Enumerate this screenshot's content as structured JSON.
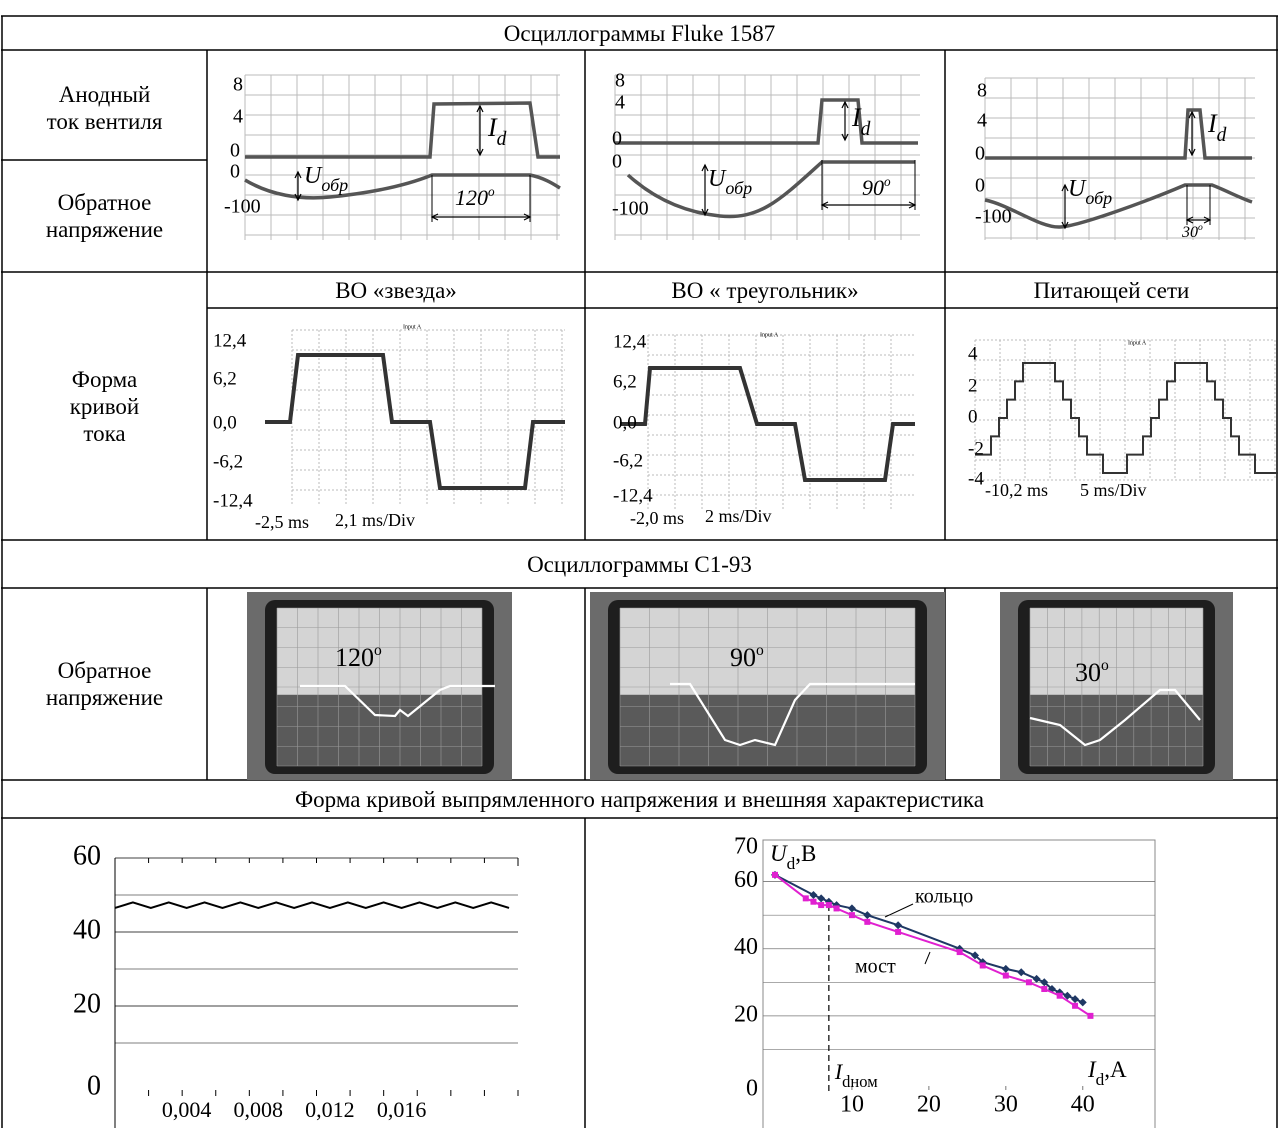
{
  "table": {
    "fluke_title": "Осциллограммы Fluke 1587",
    "row_anode": [
      "Анодный",
      "ток вентиля"
    ],
    "row_reverse": [
      "Обратное",
      "напряжение"
    ],
    "fluke": [
      {
        "top_ticks": [
          "8",
          "4",
          "0"
        ],
        "bottom_ticks": [
          "0",
          "-100"
        ],
        "current": "I",
        "current_sub": "d",
        "voltage": "U",
        "voltage_sub": "обр",
        "angle": "120",
        "angle_sup": "o"
      },
      {
        "top_ticks": [
          "8",
          "4",
          "0"
        ],
        "bottom_ticks": [
          "0",
          "-100"
        ],
        "current": "I",
        "current_sub": "d",
        "voltage": "U",
        "voltage_sub": "обр",
        "angle": "90",
        "angle_sup": "o"
      },
      {
        "top_ticks": [
          "8",
          "4",
          "0"
        ],
        "bottom_ticks": [
          "0",
          "-100"
        ],
        "current": "I",
        "current_sub": "d",
        "voltage": "U",
        "voltage_sub": "обр",
        "angle": "30",
        "angle_sup": "o"
      }
    ],
    "current_headers": [
      "ВО «звезда»",
      "ВО « треугольник»",
      "Питающей сети"
    ],
    "row_current": [
      "Форма",
      "кривой",
      "тока"
    ],
    "current_plots": [
      {
        "ticks": [
          "12,4",
          "6,2",
          "0,0",
          "-6,2",
          "-12,4"
        ],
        "start": "-2,5 ms",
        "scale": "2,1 ms/Div",
        "input": "Input A"
      },
      {
        "ticks": [
          "12,4",
          "6,2",
          "0,0",
          "-6,2",
          "-12,4"
        ],
        "start": "-2,0 ms",
        "scale": "2 ms/Div",
        "input": "Input A"
      },
      {
        "ticks": [
          "4",
          "2",
          "0",
          "-2",
          "-4"
        ],
        "start": "-10,2 ms",
        "scale": "5 ms/Div",
        "input": "Input A"
      }
    ],
    "c193_title": "Осциллограммы С1-93",
    "row_c193": [
      "Обратное",
      "напряжение"
    ],
    "c193_angles": [
      {
        "angle": "120",
        "sup": "o"
      },
      {
        "angle": "90",
        "sup": "o"
      },
      {
        "angle": "30",
        "sup": "o"
      }
    ],
    "bottom_title": "Форма кривой выпрямленного напряжения и внешняя характеристика"
  },
  "chart_data": [
    {
      "type": "line",
      "x": [
        0,
        0.001,
        0.002,
        0.003,
        0.004,
        0.005,
        0.006,
        0.007,
        0.008,
        0.009,
        0.01,
        0.011,
        0.012,
        0.013,
        0.014,
        0.015,
        0.016,
        0.017,
        0.018,
        0.019,
        0.02,
        0.021,
        0.022
      ],
      "series": [
        {
          "color": "#000000",
          "values": [
            46.5,
            48,
            46.5,
            48,
            46.5,
            48,
            46.5,
            48,
            46.5,
            48,
            46.5,
            48,
            46.5,
            48,
            46.5,
            48,
            46.5,
            48,
            46.5,
            48,
            46.5,
            48,
            46.5
          ]
        }
      ],
      "xlim": [
        0,
        0.0225
      ],
      "ylim": [
        0,
        60
      ],
      "yticks": [
        0,
        20,
        40,
        60
      ],
      "xticks": [
        {
          "value": 0.004,
          "label": "0,004"
        },
        {
          "value": 0.008,
          "label": "0,008"
        },
        {
          "value": 0.012,
          "label": "0,012"
        },
        {
          "value": 0.016,
          "label": "0,016"
        }
      ],
      "grid": true
    },
    {
      "type": "line",
      "series": [
        {
          "name": "кольцо",
          "color": "#1f3864",
          "x": [
            0,
            5,
            6,
            7,
            8,
            10,
            12,
            16,
            24,
            26,
            27,
            30,
            32,
            34,
            35,
            36,
            37,
            38,
            39,
            40
          ],
          "values": [
            62,
            56,
            55,
            54,
            53,
            52,
            50,
            47,
            40,
            38,
            36,
            34,
            33,
            31,
            30,
            28,
            27,
            26,
            25,
            24
          ]
        },
        {
          "name": "мост",
          "color": "#e020d0",
          "x": [
            0,
            4,
            5,
            6,
            7,
            8,
            10,
            12,
            16,
            24,
            27,
            30,
            33,
            35,
            37,
            39,
            41
          ],
          "values": [
            62,
            55,
            54,
            53,
            53,
            52,
            50,
            48,
            45,
            39,
            35,
            32,
            30,
            28,
            26,
            23,
            20
          ]
        }
      ],
      "ylabel": "U",
      "ylabel_sub": "d",
      "ylabel_unit": ",В",
      "xlabel": "I",
      "xlabel_sub": "d",
      "xlabel_unit": ",А",
      "nominal_label": "I",
      "nominal_sub": "dном",
      "nominal_x": 7,
      "xlim": [
        0,
        49
      ],
      "ylim": [
        0,
        70
      ],
      "xticks": [
        10,
        20,
        30,
        40
      ],
      "yticks": [
        0,
        20,
        40,
        60,
        70
      ],
      "grid": true
    }
  ]
}
